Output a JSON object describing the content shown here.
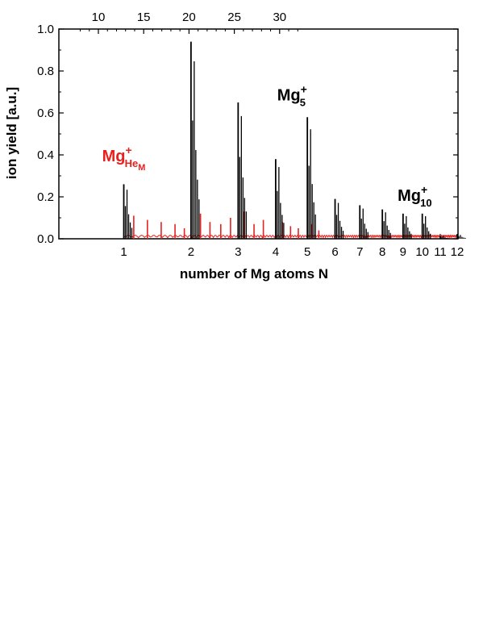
{
  "chart_data": {
    "type": "line",
    "xlabel": "number of Mg atoms N",
    "ylabel": "ion yield [a.u.]",
    "ylim": [
      0.0,
      1.0
    ],
    "y_ticks": [
      "0.0",
      "0.2",
      "0.4",
      "0.6",
      "0.8",
      "1.0"
    ],
    "x_scale": "cube-root (cluster size N, N^(1/3) spacing)",
    "x_ticks": [
      "1",
      "2",
      "3",
      "4",
      "5",
      "6",
      "7",
      "8",
      "9",
      "10",
      "11",
      "12"
    ],
    "top_axis": {
      "label": "",
      "ticks": [
        "10",
        "15",
        "20",
        "25",
        "30"
      ]
    },
    "grid": false,
    "series": [
      {
        "name": "",
        "color": "#000000",
        "peaks": [
          {
            "N": 1,
            "value": 0.26
          },
          {
            "N": 2,
            "value": 0.94
          },
          {
            "N": 3,
            "value": 0.65
          },
          {
            "N": 4,
            "value": 0.38
          },
          {
            "N": 5,
            "value": 0.58
          },
          {
            "N": 6,
            "value": 0.19
          },
          {
            "N": 7,
            "value": 0.16
          },
          {
            "N": 8,
            "value": 0.14
          },
          {
            "N": 9,
            "value": 0.12
          },
          {
            "N": 10,
            "value": 0.12
          },
          {
            "N": 11,
            "value": 0.015
          },
          {
            "N": 12,
            "value": 0.02
          }
        ]
      },
      {
        "name": "",
        "color": "#e8201e",
        "peaks_N": [
          1.12,
          1.3,
          1.5,
          1.72,
          1.88,
          2.18,
          2.37,
          2.6,
          2.82,
          3.15,
          3.4,
          3.65,
          4.2,
          4.45,
          4.7,
          5.15,
          5.4
        ],
        "peaks_value": [
          0.11,
          0.09,
          0.08,
          0.07,
          0.05,
          0.12,
          0.08,
          0.07,
          0.1,
          0.13,
          0.07,
          0.09,
          0.08,
          0.06,
          0.05,
          0.07,
          0.04
        ]
      }
    ],
    "annotations": [
      {
        "text": "Mg",
        "sup": "+",
        "sub": "He",
        "sub2": "M",
        "color": "#e8201e",
        "anchor_N": 1.0,
        "anchor_y": 0.37
      },
      {
        "text": "Mg",
        "sup": "+",
        "sub": "5",
        "color": "#000000",
        "anchor_N": 4.5,
        "anchor_y": 0.66
      },
      {
        "text": "Mg",
        "sup": "+",
        "sub": "10",
        "color": "#000000",
        "anchor_N": 9.6,
        "anchor_y": 0.18
      }
    ]
  }
}
